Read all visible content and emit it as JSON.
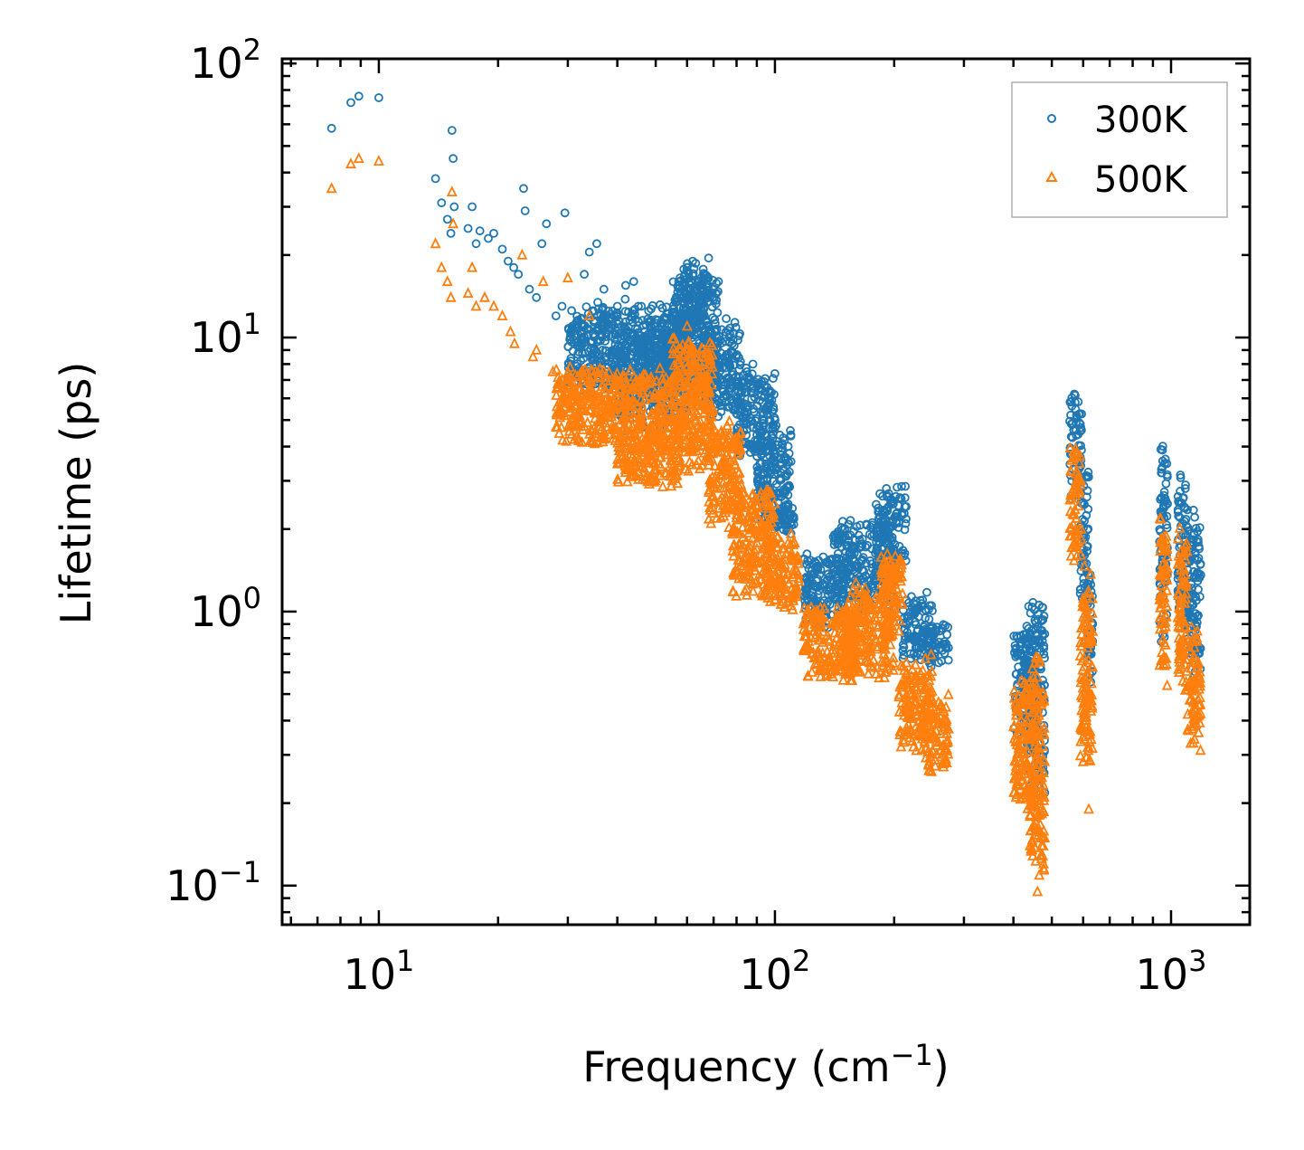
{
  "chart_data": {
    "type": "scatter",
    "xscale": "log",
    "yscale": "log",
    "xlabel_base": "Frequency (cm",
    "xlabel_sup": "−1",
    "xlabel_tail": ")",
    "ylabel": "Lifetime (ps)",
    "xlim": [
      5.7,
      1580
    ],
    "ylim": [
      0.072,
      104
    ],
    "x_ticks": [
      {
        "value": 10,
        "base": "10",
        "exp": "1"
      },
      {
        "value": 100,
        "base": "10",
        "exp": "2"
      },
      {
        "value": 1000,
        "base": "10",
        "exp": "3"
      }
    ],
    "y_ticks": [
      {
        "value": 0.1,
        "base": "10",
        "exp": "−1"
      },
      {
        "value": 1,
        "base": "10",
        "exp": "0"
      },
      {
        "value": 10,
        "base": "10",
        "exp": "1"
      },
      {
        "value": 100,
        "base": "10",
        "exp": "2"
      }
    ],
    "legend_position": "top-right",
    "series": [
      {
        "name": "300K",
        "marker": "circle",
        "color": "#1f77b4",
        "points": [
          [
            7.6,
            58
          ],
          [
            8.5,
            72
          ],
          [
            8.9,
            76
          ],
          [
            10.0,
            75
          ],
          [
            13.9,
            38
          ],
          [
            14.4,
            31
          ],
          [
            14.9,
            27
          ],
          [
            15.2,
            24
          ],
          [
            15.3,
            57
          ],
          [
            15.4,
            45
          ],
          [
            15.5,
            30
          ],
          [
            16.8,
            25
          ],
          [
            17.2,
            30
          ],
          [
            17.6,
            22
          ],
          [
            18.0,
            24.5
          ],
          [
            18.9,
            23
          ],
          [
            19.5,
            24
          ],
          [
            20.5,
            21
          ],
          [
            21.2,
            19
          ],
          [
            21.9,
            18
          ],
          [
            22.5,
            17
          ],
          [
            23.2,
            35
          ],
          [
            23.4,
            29
          ],
          [
            24.0,
            15
          ],
          [
            25.0,
            14
          ],
          [
            25.8,
            22
          ],
          [
            26.5,
            26
          ],
          [
            28.0,
            12
          ],
          [
            29.0,
            13
          ],
          [
            29.5,
            28.5
          ],
          [
            30.5,
            10.5
          ],
          [
            33.0,
            17
          ],
          [
            34.0,
            20.5
          ],
          [
            35.5,
            22
          ],
          [
            37.0,
            15
          ],
          [
            38.0,
            12.5
          ],
          [
            40.0,
            13
          ],
          [
            42.0,
            15.5
          ],
          [
            44.0,
            16
          ],
          [
            46.0,
            13
          ],
          [
            48.0,
            12.5
          ],
          [
            50.0,
            11
          ],
          [
            52.0,
            10
          ],
          [
            55.0,
            8.5
          ],
          [
            58.0,
            7
          ],
          [
            60.0,
            18
          ],
          [
            62.0,
            19
          ],
          [
            64.0,
            16
          ],
          [
            66.0,
            15
          ],
          [
            68.0,
            19.5
          ],
          [
            72.0,
            16
          ],
          [
            78.0,
            9.5
          ],
          [
            80.0,
            8.5
          ],
          [
            85.0,
            7.5
          ],
          [
            88.0,
            8
          ],
          [
            92.0,
            6.5
          ],
          [
            95.0,
            5.5
          ],
          [
            100.0,
            5
          ],
          [
            105.0,
            4.3
          ]
        ],
        "bands": [
          {
            "x": [
              30,
              60
            ],
            "y": [
              6,
              14
            ]
          },
          {
            "x": [
              40,
              60
            ],
            "y": [
              4.5,
              11
            ]
          },
          {
            "x": [
              55,
              72
            ],
            "y": [
              6,
              18
            ]
          },
          {
            "x": [
              58,
              68
            ],
            "y": [
              10,
              19
            ]
          },
          {
            "x": [
              66,
              82
            ],
            "y": [
              5,
              12
            ]
          },
          {
            "x": [
              80,
              100
            ],
            "y": [
              3.5,
              8
            ]
          },
          {
            "x": [
              90,
              110
            ],
            "y": [
              2,
              5
            ]
          },
          {
            "x": [
              100,
              112
            ],
            "y": [
              1.9,
              2.5
            ]
          },
          {
            "x": [
              118,
              150
            ],
            "y": [
              0.85,
              1.7
            ]
          },
          {
            "x": [
              140,
              200
            ],
            "y": [
              1.0,
              2.2
            ]
          },
          {
            "x": [
              180,
              215
            ],
            "y": [
              1.4,
              3.0
            ]
          },
          {
            "x": [
              210,
              250
            ],
            "y": [
              0.65,
              1.2
            ]
          },
          {
            "x": [
              240,
              275
            ],
            "y": [
              0.6,
              0.95
            ]
          },
          {
            "x": [
              400,
              445
            ],
            "y": [
              0.35,
              0.9
            ]
          },
          {
            "x": [
              430,
              480
            ],
            "y": [
              0.2,
              1.2
            ]
          },
          {
            "x": [
              555,
              595
            ],
            "y": [
              2.5,
              6.8
            ]
          },
          {
            "x": [
              590,
              620
            ],
            "y": [
              1.0,
              3.5
            ]
          },
          {
            "x": [
              615,
              635
            ],
            "y": [
              0.55,
              1.5
            ]
          },
          {
            "x": [
              935,
              980
            ],
            "y": [
              0.7,
              4.6
            ]
          },
          {
            "x": [
              1040,
              1100
            ],
            "y": [
              0.8,
              3.4
            ]
          },
          {
            "x": [
              1100,
              1190
            ],
            "y": [
              0.55,
              2.5
            ]
          }
        ]
      },
      {
        "name": "500K",
        "marker": "triangle",
        "color": "#ff7f0e",
        "points": [
          [
            7.6,
            35
          ],
          [
            8.5,
            43
          ],
          [
            8.9,
            45
          ],
          [
            10.0,
            44
          ],
          [
            13.9,
            22
          ],
          [
            14.4,
            18
          ],
          [
            14.9,
            16
          ],
          [
            15.2,
            14
          ],
          [
            15.3,
            34
          ],
          [
            15.4,
            26
          ],
          [
            16.8,
            14.5
          ],
          [
            17.2,
            18
          ],
          [
            17.6,
            13
          ],
          [
            18.5,
            14
          ],
          [
            19.5,
            13
          ],
          [
            20.5,
            12
          ],
          [
            21.5,
            10.5
          ],
          [
            22.0,
            9.5
          ],
          [
            23.0,
            20
          ],
          [
            24.5,
            8.5
          ],
          [
            25.0,
            9
          ],
          [
            26.0,
            16
          ],
          [
            27.5,
            7.5
          ],
          [
            29.0,
            7
          ],
          [
            30.0,
            16.5
          ],
          [
            32.0,
            6.5
          ],
          [
            34.0,
            12
          ],
          [
            38.0,
            5.5
          ],
          [
            40.0,
            4.5
          ],
          [
            45.0,
            4
          ],
          [
            48.0,
            3.5
          ],
          [
            55.0,
            3.0
          ],
          [
            60.0,
            11
          ],
          [
            70.0,
            2.5
          ],
          [
            80.0,
            2.2
          ],
          [
            90.0,
            1.5
          ],
          [
            95.0,
            1.2
          ],
          [
            100.0,
            1.1
          ],
          [
            110.0,
            1.05
          ],
          [
            120.0,
            0.75
          ],
          [
            150.0,
            0.65
          ],
          [
            215.0,
            0.6
          ],
          [
            600.0,
            0.35
          ],
          [
            620.0,
            0.19
          ],
          [
            460.0,
            0.095
          ]
        ],
        "bands": [
          {
            "x": [
              28,
              55
            ],
            "y": [
              4,
              8
            ]
          },
          {
            "x": [
              40,
              58
            ],
            "y": [
              2.8,
              5
            ]
          },
          {
            "x": [
              55,
              70
            ],
            "y": [
              3,
              11
            ]
          },
          {
            "x": [
              68,
              82
            ],
            "y": [
              2,
              5
            ]
          },
          {
            "x": [
              78,
              100
            ],
            "y": [
              1.1,
              3
            ]
          },
          {
            "x": [
              95,
              115
            ],
            "y": [
              1.0,
              2
            ]
          },
          {
            "x": [
              118,
              160
            ],
            "y": [
              0.55,
              1.1
            ]
          },
          {
            "x": [
              150,
              200
            ],
            "y": [
              0.55,
              1.3
            ]
          },
          {
            "x": [
              185,
              210
            ],
            "y": [
              0.8,
              1.75
            ]
          },
          {
            "x": [
              205,
              250
            ],
            "y": [
              0.3,
              0.7
            ]
          },
          {
            "x": [
              240,
              275
            ],
            "y": [
              0.25,
              0.5
            ]
          },
          {
            "x": [
              400,
              450
            ],
            "y": [
              0.18,
              0.6
            ]
          },
          {
            "x": [
              440,
              480
            ],
            "y": [
              0.1,
              0.75
            ]
          },
          {
            "x": [
              555,
              595
            ],
            "y": [
              1.5,
              4.2
            ]
          },
          {
            "x": [
              590,
              635
            ],
            "y": [
              0.25,
              1.5
            ]
          },
          {
            "x": [
              935,
              980
            ],
            "y": [
              0.5,
              2.5
            ]
          },
          {
            "x": [
              1040,
              1100
            ],
            "y": [
              0.45,
              2.2
            ]
          },
          {
            "x": [
              1100,
              1190
            ],
            "y": [
              0.3,
              0.9
            ]
          }
        ]
      }
    ]
  }
}
